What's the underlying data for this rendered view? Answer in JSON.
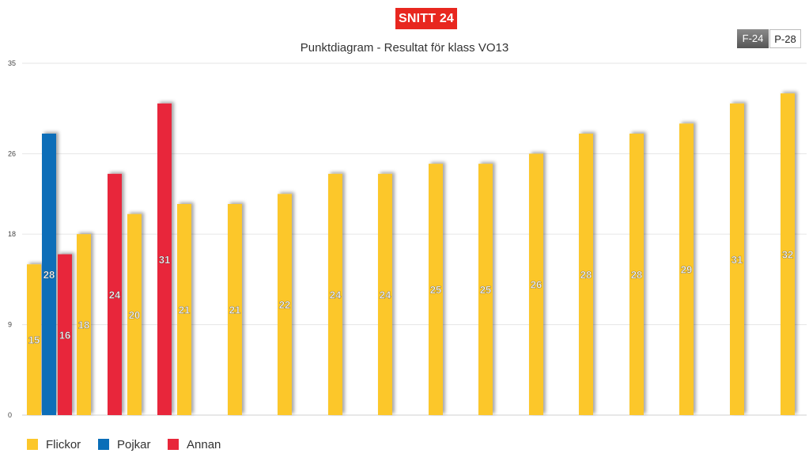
{
  "badge": "SNITT 24",
  "toggles": {
    "f_label": "F-24",
    "p_label": "P-28"
  },
  "chart_data": {
    "type": "bar",
    "title": "Punktdiagram - Resultat för klass VO13",
    "yticks": [
      0,
      9,
      18,
      26,
      35
    ],
    "ylim": [
      0,
      35
    ],
    "grid": true,
    "legend_position": "bottom-left",
    "series_colors": {
      "Flickor": "#fcc72a",
      "Pojkar": "#0a6eb8",
      "Annan": "#e8273a"
    },
    "bars": [
      {
        "series": "Flickor",
        "value": 15
      },
      {
        "series": "Pojkar",
        "value": 28
      },
      {
        "series": "Annan",
        "value": 16
      },
      {
        "series": "Flickor",
        "value": 18
      },
      {
        "series": "Annan",
        "value": 24
      },
      {
        "series": "Flickor",
        "value": 20
      },
      {
        "series": "Annan",
        "value": 31
      },
      {
        "series": "Flickor",
        "value": 21
      },
      {
        "series": "Flickor",
        "value": 21
      },
      {
        "series": "Flickor",
        "value": 22
      },
      {
        "series": "Flickor",
        "value": 24
      },
      {
        "series": "Flickor",
        "value": 24
      },
      {
        "series": "Flickor",
        "value": 25
      },
      {
        "series": "Flickor",
        "value": 25
      },
      {
        "series": "Flickor",
        "value": 26
      },
      {
        "series": "Flickor",
        "value": 28
      },
      {
        "series": "Flickor",
        "value": 28
      },
      {
        "series": "Flickor",
        "value": 29
      },
      {
        "series": "Flickor",
        "value": 31
      },
      {
        "series": "Flickor",
        "value": 32
      }
    ]
  },
  "legend": [
    {
      "label": "Flickor",
      "color": "#fcc72a"
    },
    {
      "label": "Pojkar",
      "color": "#0a6eb8"
    },
    {
      "label": "Annan",
      "color": "#e8273a"
    }
  ]
}
